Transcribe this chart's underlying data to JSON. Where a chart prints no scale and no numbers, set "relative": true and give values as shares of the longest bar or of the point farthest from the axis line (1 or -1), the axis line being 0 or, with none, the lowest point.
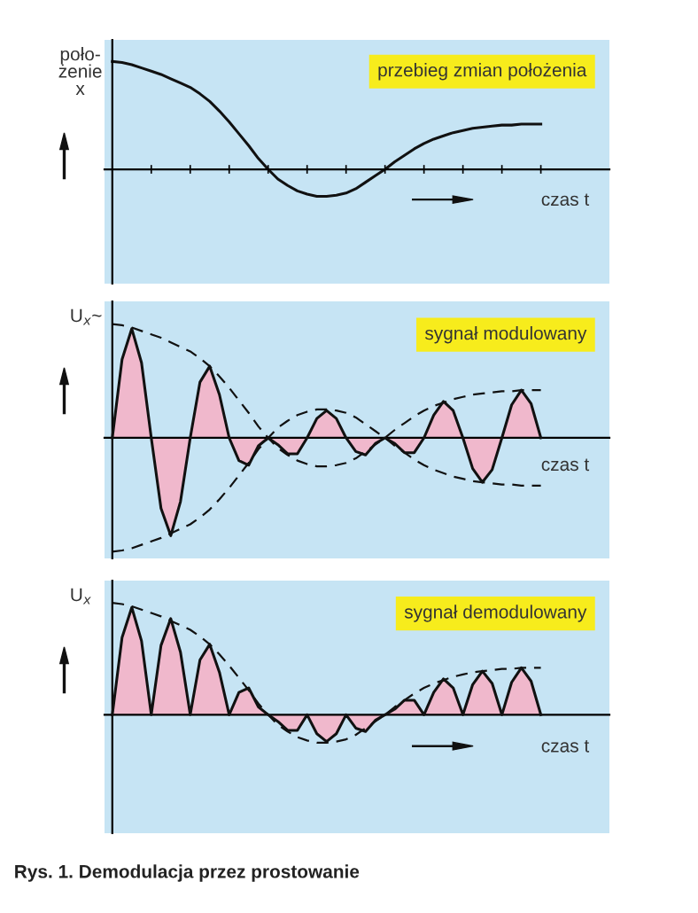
{
  "chart_data": [
    {
      "type": "line",
      "title": "przebieg zmian położenia",
      "ylabel": "poło-\nżenie\nx",
      "xlabel": "czas t",
      "relative": true,
      "grid": false,
      "legend": false,
      "categories": [
        null,
        null,
        null,
        null,
        null,
        null,
        null,
        null,
        null,
        null,
        null,
        null,
        null,
        null,
        null,
        null,
        null,
        null,
        null,
        null,
        null,
        null,
        null,
        null,
        null,
        null,
        null,
        null,
        null,
        null,
        null,
        null,
        null,
        null,
        null,
        null,
        null,
        null,
        null,
        null,
        null,
        null,
        null,
        null,
        null
      ],
      "series": [
        {
          "color": "#111111",
          "line_style": "solid",
          "values": [
            1.0,
            0.99,
            0.97,
            0.94,
            0.91,
            0.88,
            0.84,
            0.8,
            0.76,
            0.7,
            0.63,
            0.54,
            0.44,
            0.33,
            0.22,
            0.1,
            0,
            -0.09,
            -0.15,
            -0.2,
            -0.23,
            -0.25,
            -0.25,
            -0.24,
            -0.22,
            -0.18,
            -0.12,
            -0.06,
            0,
            0.07,
            0.13,
            0.19,
            0.24,
            0.28,
            0.31,
            0.34,
            0.36,
            0.38,
            0.39,
            0.4,
            0.41,
            0.41,
            0.42,
            0.42,
            0.42
          ]
        }
      ]
    },
    {
      "type": "line",
      "title": "sygnał modulowany",
      "ylabel": "U$_{x}$~",
      "xlabel": "czas t",
      "relative": true,
      "grid": false,
      "legend": false,
      "categories": [
        null,
        null,
        null,
        null,
        null,
        null,
        null,
        null,
        null,
        null,
        null,
        null,
        null,
        null,
        null,
        null,
        null,
        null,
        null,
        null,
        null,
        null,
        null,
        null,
        null,
        null,
        null,
        null,
        null,
        null,
        null,
        null,
        null,
        null,
        null,
        null,
        null,
        null,
        null,
        null,
        null,
        null,
        null,
        null,
        null
      ],
      "series": [
        {
          "type": "area",
          "color": "#f0b8cc",
          "line_style": "solid",
          "values": [
            0,
            0.69,
            0.96,
            0.66,
            0,
            -0.62,
            -0.86,
            -0.56,
            0,
            0.49,
            0.63,
            0.38,
            0,
            -0.2,
            -0.24,
            -0.07,
            0,
            -0.06,
            -0.14,
            -0.14,
            0,
            0.17,
            0.24,
            0.17,
            0,
            -0.12,
            -0.15,
            -0.05,
            0,
            -0.05,
            -0.13,
            -0.13,
            0,
            0.2,
            0.32,
            0.24,
            0,
            -0.27,
            -0.39,
            -0.28,
            0,
            0.29,
            0.42,
            0.3,
            0
          ]
        },
        {
          "type": "line",
          "color": "#111111",
          "line_style": "dashed",
          "values": [
            1.0,
            0.99,
            0.97,
            0.94,
            0.91,
            0.88,
            0.84,
            0.8,
            0.76,
            0.7,
            0.63,
            0.54,
            0.44,
            0.33,
            0.22,
            0.1,
            0,
            -0.09,
            -0.15,
            -0.2,
            -0.23,
            -0.25,
            -0.25,
            -0.24,
            -0.22,
            -0.18,
            -0.12,
            -0.06,
            0,
            0.07,
            0.13,
            0.19,
            0.24,
            0.28,
            0.31,
            0.34,
            0.36,
            0.38,
            0.39,
            0.4,
            0.41,
            0.41,
            0.42,
            0.42,
            0.42
          ]
        },
        {
          "type": "line",
          "color": "#111111",
          "line_style": "dashed",
          "values": [
            -1.0,
            -0.99,
            -0.97,
            -0.94,
            -0.91,
            -0.88,
            -0.84,
            -0.8,
            -0.76,
            -0.7,
            -0.63,
            -0.54,
            -0.44,
            -0.33,
            -0.22,
            -0.1,
            0,
            0.09,
            0.15,
            0.2,
            0.23,
            0.25,
            0.25,
            0.24,
            0.22,
            0.18,
            0.12,
            0.06,
            0,
            -0.07,
            -0.13,
            -0.19,
            -0.24,
            -0.28,
            -0.31,
            -0.34,
            -0.36,
            -0.38,
            -0.39,
            -0.4,
            -0.41,
            -0.41,
            -0.42,
            -0.42,
            -0.42
          ]
        }
      ]
    },
    {
      "type": "line",
      "title": "sygnał demodulowany",
      "ylabel": "U$_{x}$",
      "xlabel": "czas t",
      "relative": true,
      "grid": false,
      "legend": false,
      "annotations": [
        "Rys. 1. Demodulacja przez prostowanie"
      ],
      "categories": [
        null,
        null,
        null,
        null,
        null,
        null,
        null,
        null,
        null,
        null,
        null,
        null,
        null,
        null,
        null,
        null,
        null,
        null,
        null,
        null,
        null,
        null,
        null,
        null,
        null,
        null,
        null,
        null,
        null,
        null,
        null,
        null,
        null,
        null,
        null,
        null,
        null,
        null,
        null,
        null,
        null,
        null,
        null,
        null,
        null
      ],
      "series": [
        {
          "type": "area",
          "color": "#f0b8cc",
          "line_style": "solid",
          "values": [
            0,
            0.69,
            0.96,
            0.66,
            0,
            0.62,
            0.86,
            0.56,
            0,
            0.49,
            0.63,
            0.38,
            0,
            0.2,
            0.24,
            0.07,
            0,
            -0.06,
            -0.14,
            -0.14,
            0,
            -0.17,
            -0.24,
            -0.17,
            0,
            -0.12,
            -0.15,
            -0.05,
            0,
            0.05,
            0.13,
            0.13,
            0,
            0.2,
            0.32,
            0.24,
            0,
            0.27,
            0.39,
            0.28,
            0,
            0.29,
            0.42,
            0.3,
            0
          ]
        },
        {
          "type": "line",
          "color": "#111111",
          "line_style": "dashed",
          "values": [
            1.0,
            0.99,
            0.97,
            0.94,
            0.91,
            0.88,
            0.84,
            0.8,
            0.76,
            0.7,
            0.63,
            0.54,
            0.44,
            0.33,
            0.22,
            0.1,
            0,
            -0.09,
            -0.15,
            -0.2,
            -0.23,
            -0.25,
            -0.25,
            -0.24,
            -0.22,
            -0.18,
            -0.12,
            -0.06,
            0,
            0.07,
            0.13,
            0.19,
            0.24,
            0.28,
            0.31,
            0.34,
            0.36,
            0.38,
            0.39,
            0.4,
            0.41,
            0.41,
            0.42,
            0.42,
            0.42
          ]
        }
      ]
    }
  ]
}
